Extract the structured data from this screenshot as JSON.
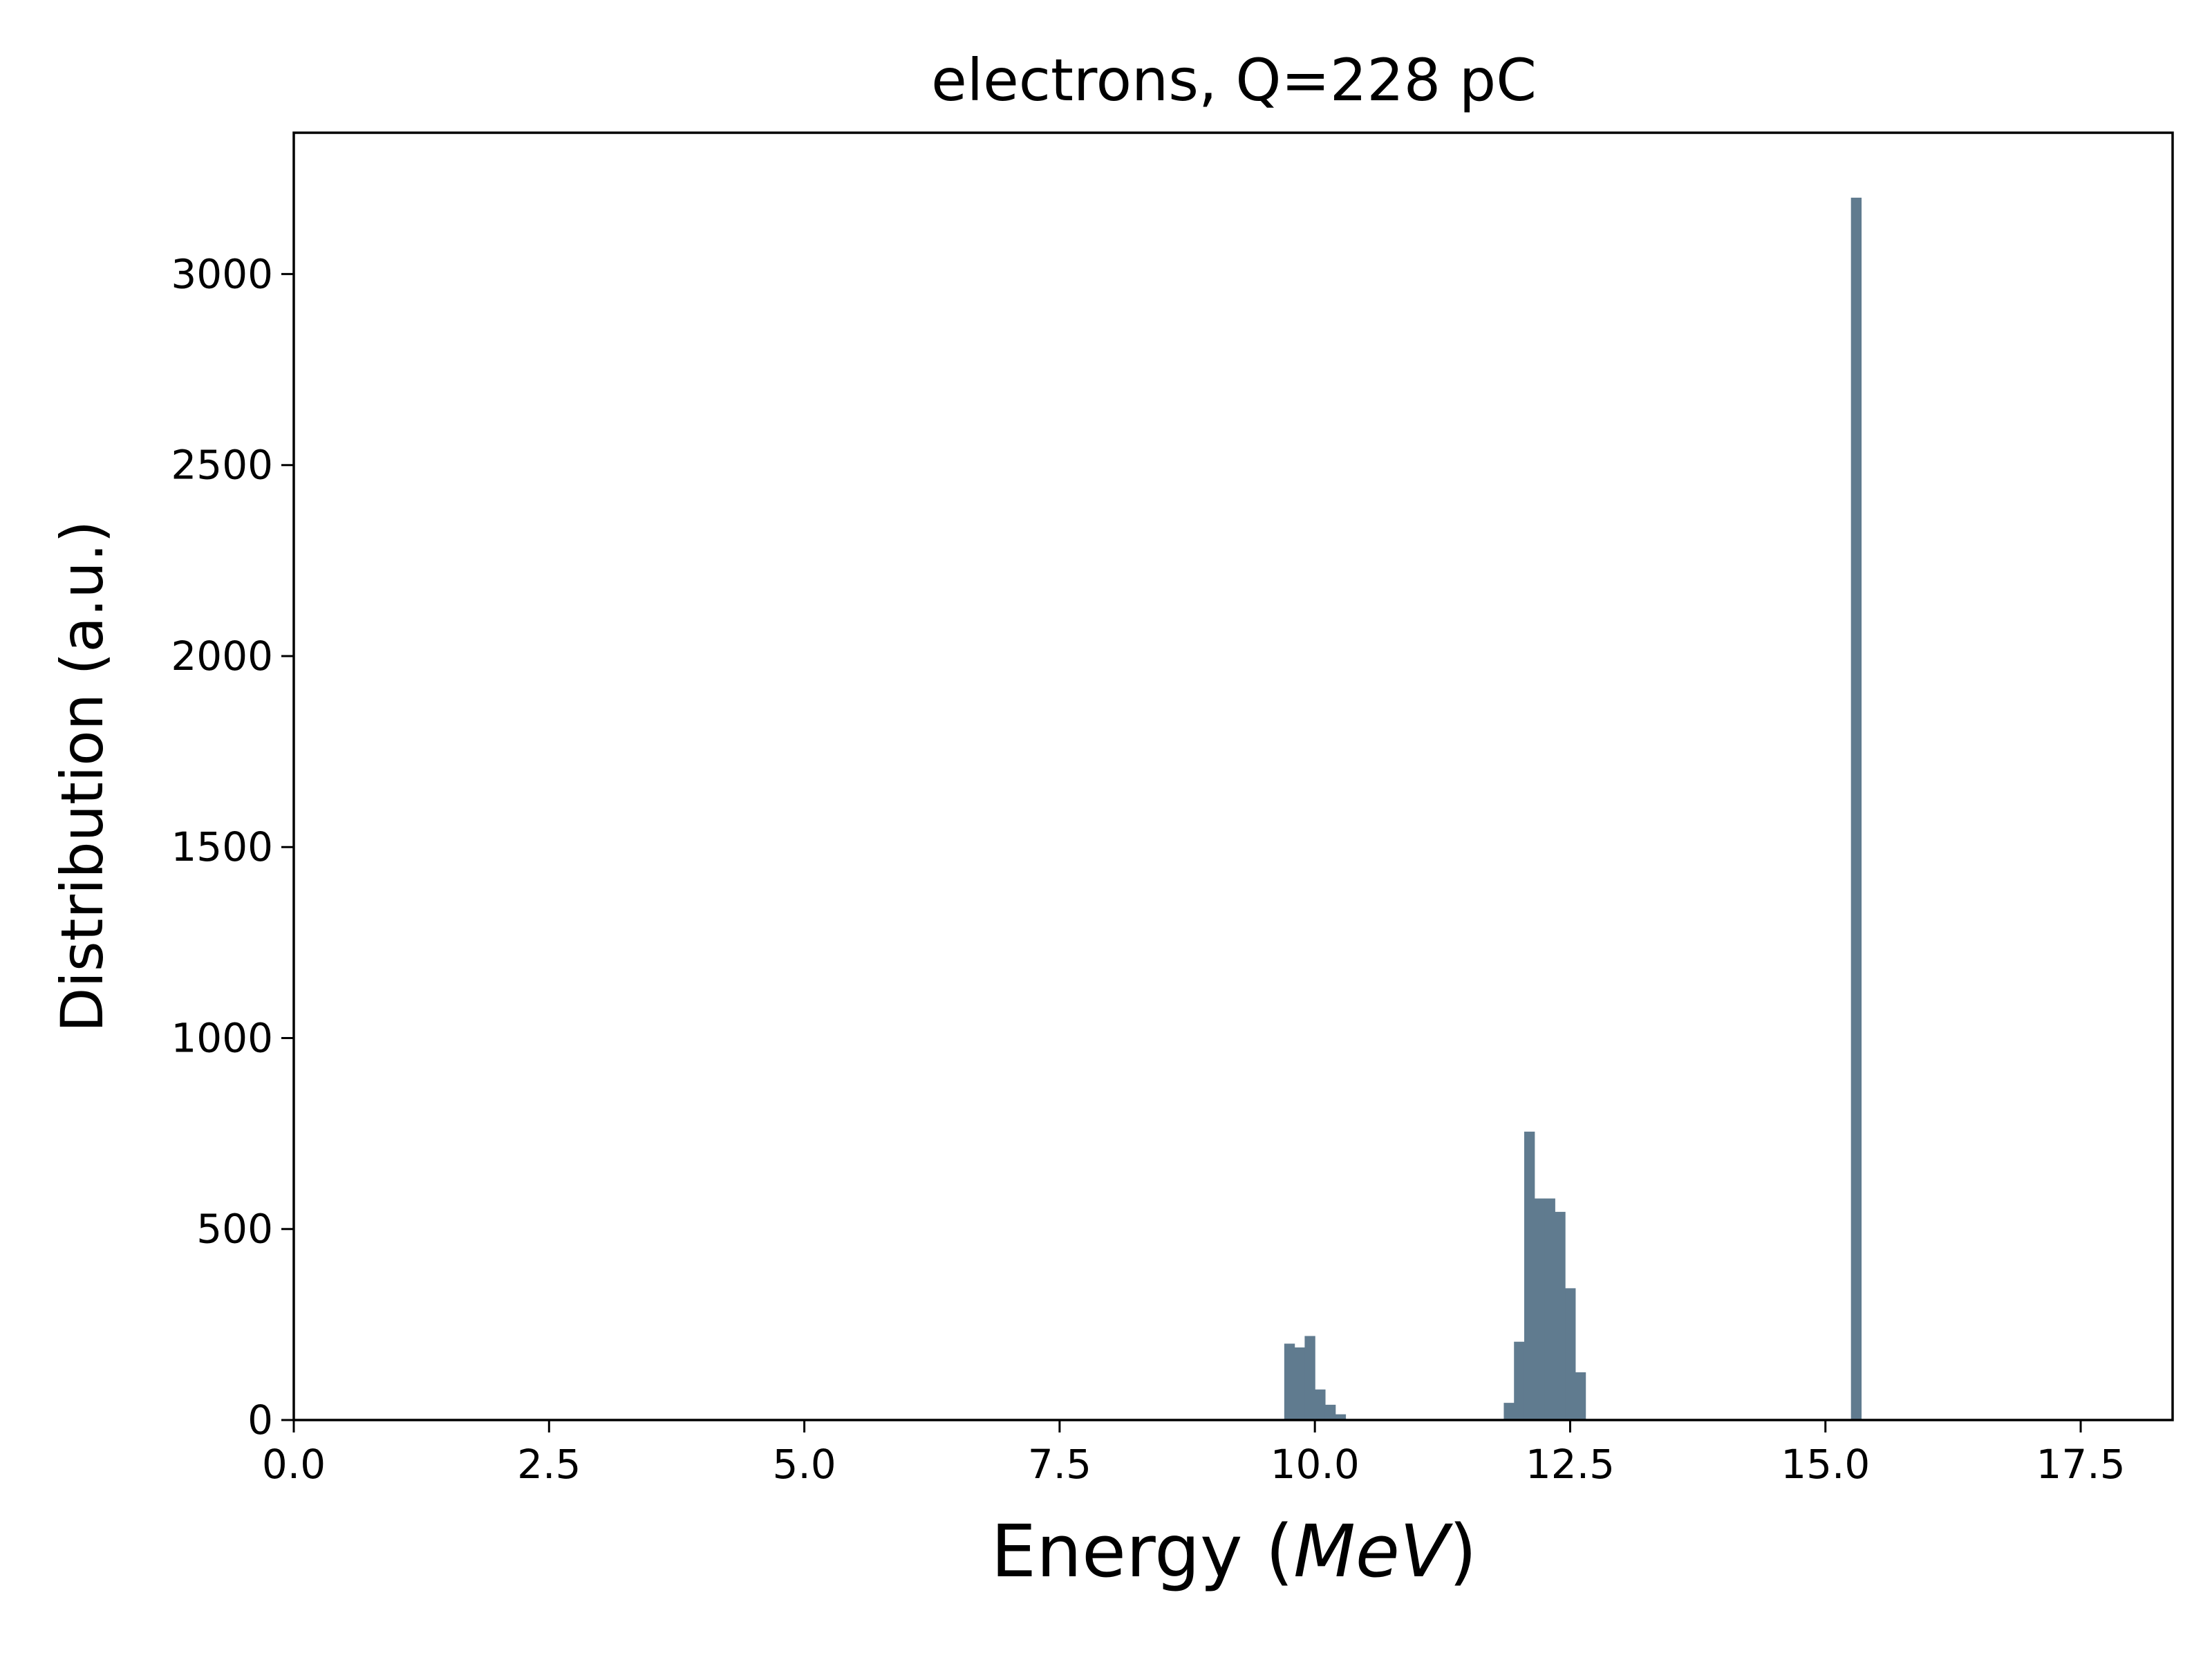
{
  "chart_data": {
    "type": "bar",
    "title": "electrons, Q=228 pC",
    "xlabel": "Energy (MeV)",
    "xlabel_parts": {
      "prefix": "Energy (",
      "unit": "MeV",
      "suffix": ")"
    },
    "ylabel": "Distribution (a.u.)",
    "xlim": [
      0,
      18.4
    ],
    "ylim": [
      0,
      3370
    ],
    "x_ticks": [
      0.0,
      2.5,
      5.0,
      7.5,
      10.0,
      12.5,
      15.0,
      17.5
    ],
    "x_tick_labels": [
      "0.0",
      "2.5",
      "5.0",
      "7.5",
      "10.0",
      "12.5",
      "15.0",
      "17.5"
    ],
    "y_ticks": [
      0,
      500,
      1000,
      1500,
      2000,
      2500,
      3000
    ],
    "y_tick_labels": [
      "0",
      "500",
      "1000",
      "1500",
      "2000",
      "2500",
      "3000"
    ],
    "bar_color": "#607b8f",
    "bin_width": 0.1,
    "bins": [
      {
        "x": 9.7,
        "value": 200
      },
      {
        "x": 9.8,
        "value": 190
      },
      {
        "x": 9.9,
        "value": 220
      },
      {
        "x": 10.0,
        "value": 80
      },
      {
        "x": 10.1,
        "value": 40
      },
      {
        "x": 10.2,
        "value": 15
      },
      {
        "x": 11.85,
        "value": 45
      },
      {
        "x": 11.95,
        "value": 205
      },
      {
        "x": 12.05,
        "value": 755
      },
      {
        "x": 12.15,
        "value": 580
      },
      {
        "x": 12.25,
        "value": 580
      },
      {
        "x": 12.35,
        "value": 545
      },
      {
        "x": 12.45,
        "value": 345
      },
      {
        "x": 12.55,
        "value": 125
      },
      {
        "x": 15.25,
        "value": 3200
      }
    ],
    "grid": false,
    "legend": "none"
  }
}
